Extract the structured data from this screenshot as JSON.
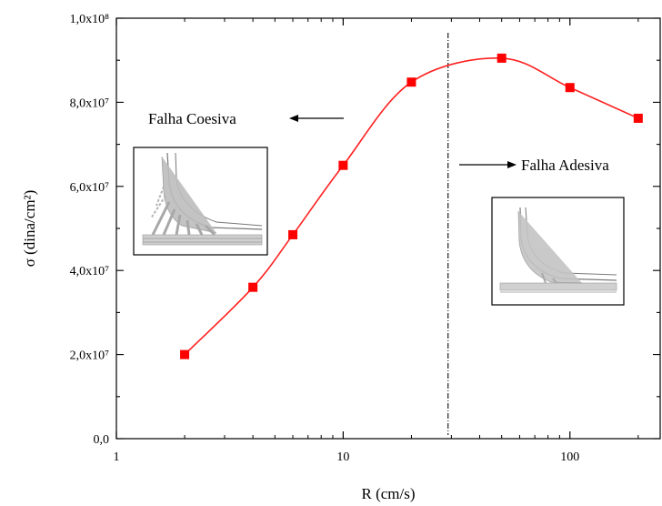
{
  "chart_data": {
    "type": "scatter",
    "x_scale": "log",
    "xlabel": "R (cm/s)",
    "ylabel": "σ (dina/cm²)",
    "xlim": [
      1,
      250
    ],
    "ylim": [
      0,
      100000000
    ],
    "x_ticks": [
      {
        "value": 1,
        "label": "1"
      },
      {
        "value": 10,
        "label": "10"
      },
      {
        "value": 100,
        "label": "100"
      }
    ],
    "y_ticks": [
      {
        "value": 0,
        "label": "0,0"
      },
      {
        "value": 20000000,
        "label": "2,0x10⁷"
      },
      {
        "value": 40000000,
        "label": "4,0x10⁷"
      },
      {
        "value": 60000000,
        "label": "6,0x10⁷"
      },
      {
        "value": 80000000,
        "label": "8,0x10⁷"
      },
      {
        "value": 100000000,
        "label": "1,0x10⁸"
      }
    ],
    "series": [
      {
        "color": "#ff0000",
        "marker": "square",
        "x": [
          2,
          4,
          6,
          10,
          20,
          50,
          100,
          200
        ],
        "y": [
          20000000,
          36000000,
          48500000,
          65000000,
          84800000,
          90500000,
          83500000,
          76200000
        ]
      }
    ],
    "fit_curve_color": "#ff2020",
    "vline_x": 29,
    "grid": false,
    "annotations": [
      {
        "text": "Falha Coesiva",
        "arrow": "left"
      },
      {
        "text": "Falha Adesiva",
        "arrow": "right"
      }
    ]
  }
}
